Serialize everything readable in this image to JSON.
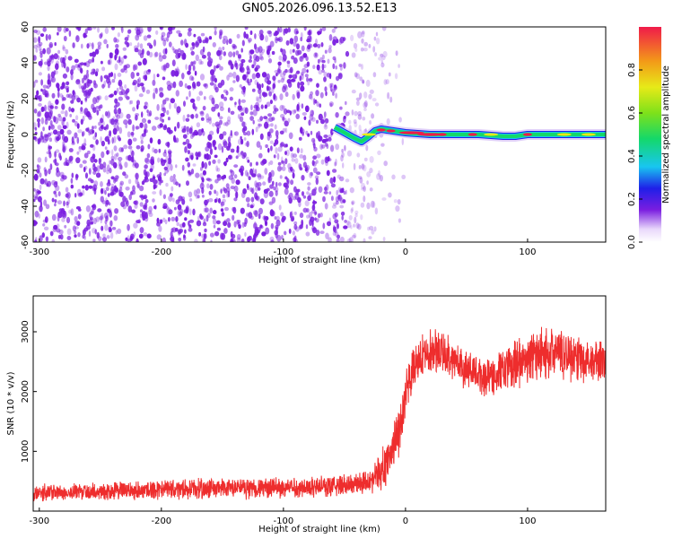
{
  "title": "GN05.2026.096.13.52.E13",
  "colors": {
    "spectrogram_noise": "#7b1fe0",
    "snr_line": "#ee2d2d",
    "frame": "#000000"
  },
  "chart_data": [
    {
      "type": "heatmap",
      "xlabel": "Height of straight line (km)",
      "ylabel": "Frequency (Hz)",
      "xlim": [
        -305,
        164
      ],
      "ylim": [
        -60,
        60
      ],
      "xticks": [
        -300,
        -200,
        -100,
        0,
        100
      ],
      "yticks": [
        -60,
        -40,
        -20,
        0,
        20,
        40,
        60
      ],
      "signal_track": {
        "x": [
          -58,
          -50,
          -42,
          -36,
          -30,
          -25,
          -20,
          -10,
          0,
          20,
          40,
          60,
          80,
          90,
          100,
          120,
          140,
          164
        ],
        "y": [
          4,
          1,
          -2,
          -4,
          -1,
          2,
          3,
          2,
          1,
          0,
          0,
          0,
          -1,
          -1,
          0,
          0,
          0,
          0
        ]
      },
      "noise_region_x": [
        -305,
        -25
      ],
      "colorbar": {
        "label": "Normalized spectral amplitude",
        "range": [
          0,
          1
        ],
        "ticks": [
          "0.0",
          "0.2",
          "0.4",
          "0.6",
          "0.8"
        ]
      }
    },
    {
      "type": "line",
      "xlabel": "Height of straight line (km)",
      "ylabel": "SNR (10 * v/v)",
      "xlim": [
        -305,
        164
      ],
      "ylim": [
        0,
        3600
      ],
      "xticks": [
        -300,
        -200,
        -100,
        0,
        100
      ],
      "yticks": [
        1000,
        2000,
        3000
      ],
      "series": [
        {
          "name": "SNR",
          "envelope_x": [
            -305,
            -250,
            -200,
            -150,
            -100,
            -60,
            -40,
            -25,
            -15,
            -5,
            5,
            15,
            25,
            35,
            45,
            55,
            65,
            75,
            85,
            95,
            105,
            115,
            125,
            135,
            145,
            155,
            164
          ],
          "mean": [
            300,
            330,
            360,
            380,
            390,
            420,
            460,
            560,
            800,
            1400,
            2300,
            2650,
            2700,
            2600,
            2450,
            2300,
            2250,
            2300,
            2400,
            2500,
            2600,
            2650,
            2650,
            2600,
            2550,
            2500,
            2450
          ],
          "spread": [
            150,
            160,
            170,
            180,
            180,
            190,
            200,
            260,
            400,
            500,
            400,
            350,
            380,
            380,
            350,
            350,
            350,
            380,
            400,
            420,
            450,
            450,
            450,
            430,
            420,
            400,
            400
          ]
        }
      ]
    }
  ]
}
